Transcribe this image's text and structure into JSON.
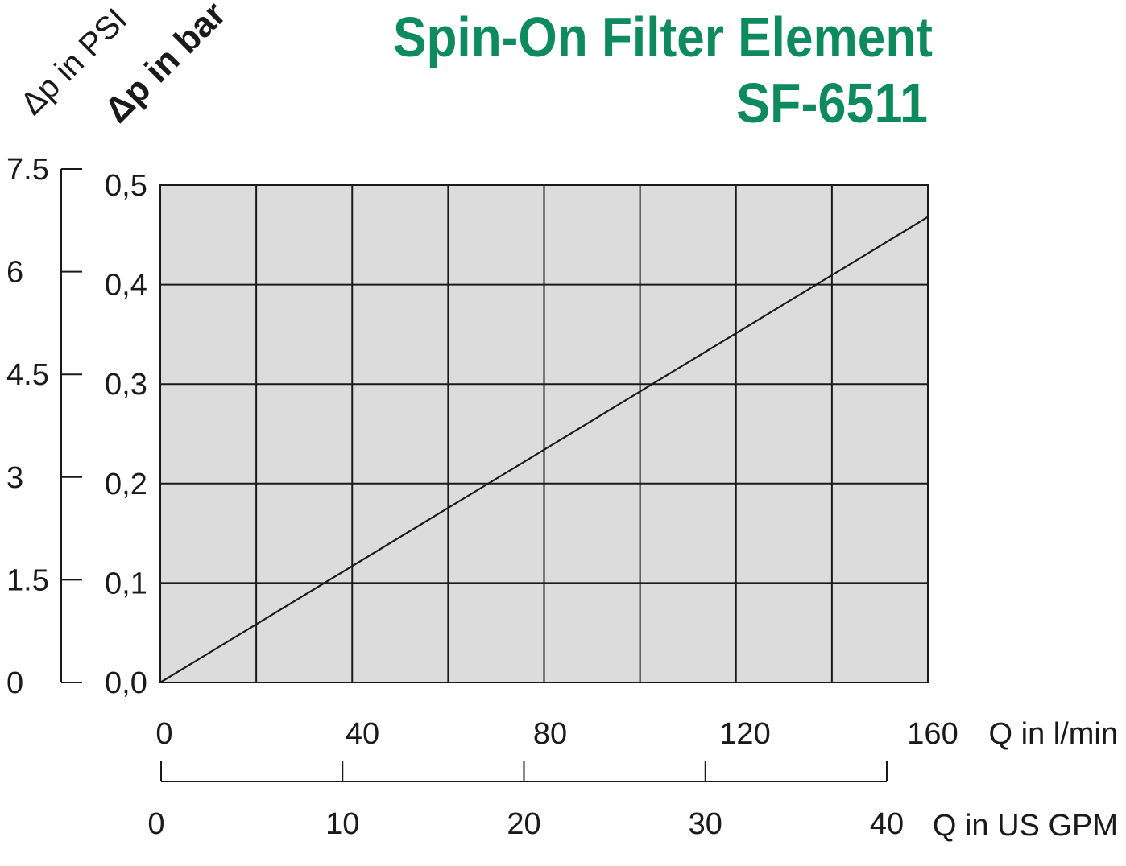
{
  "header": {
    "title_line1": "Spin-On Filter Element",
    "title_line2": "SF-6511",
    "title_color": "#0e8a5f"
  },
  "chart_data": {
    "type": "line",
    "title": "Spin-On Filter Element SF-6511",
    "plot_background": "#dcdcdd",
    "grid": true,
    "x_axis": {
      "label": "Q in l/min",
      "range": [
        0,
        160
      ],
      "gridlines": 8,
      "tick_labels": [
        "0",
        "40",
        "80",
        "120",
        "160"
      ]
    },
    "x_axis_secondary": {
      "label": "Q in US GPM",
      "range": [
        0,
        40
      ],
      "tick_labels": [
        "0",
        "10",
        "20",
        "30",
        "40"
      ]
    },
    "y_axis": {
      "label": "Δp in bar",
      "range": [
        0,
        0.5
      ],
      "tick_labels": [
        "0,0",
        "0,1",
        "0,2",
        "0,3",
        "0,4",
        "0,5"
      ]
    },
    "y_axis_secondary": {
      "label": "Δp in PSI",
      "range": [
        0,
        7.5
      ],
      "tick_labels": [
        "0",
        "1.5",
        "3",
        "4.5",
        "6",
        "7.5"
      ]
    },
    "series": [
      {
        "color": "#1a1a1a",
        "x": [
          0,
          160
        ],
        "y": [
          0,
          0.468
        ]
      }
    ]
  }
}
